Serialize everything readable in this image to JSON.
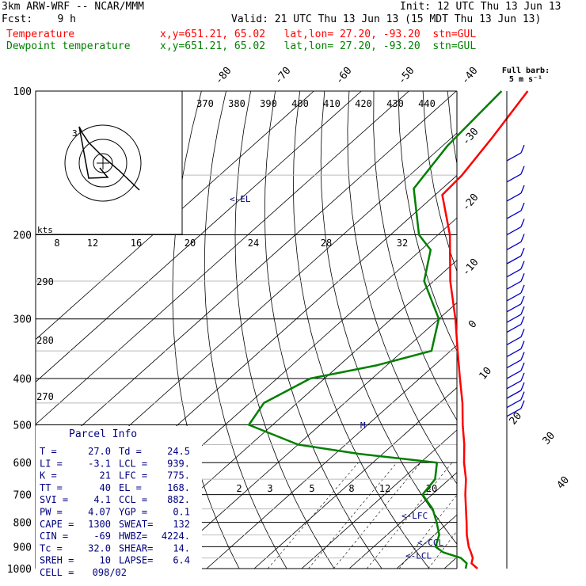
{
  "header": {
    "model": "3km ARW-WRF -- NCAR/MMM",
    "init": "Init: 12 UTC Thu 13 Jun 13",
    "fcst": "Fcst:    9 h",
    "valid": "Valid: 21 UTC Thu 13 Jun 13 (15 MDT Thu 13 Jun 13)",
    "temp_label": "Temperature",
    "dew_label": "Dewpoint temperature",
    "temp_loc": "x,y=651.21, 65.02   lat,lon= 27.20, -93.20  stn=GUL",
    "dew_loc": "x,y=651.21, 65.02   lat,lon= 27.20, -93.20  stn=GUL",
    "barb_key": "Full barb:",
    "barb_unit": "5 m s⁻¹"
  },
  "colors": {
    "temperature": "#ff0000",
    "dewpoint": "#008000",
    "text": "#000000",
    "annotation": "#000080",
    "barbs": "#0000cc"
  },
  "chart_data": {
    "type": "line",
    "kind": "skew-T log-P sounding",
    "y_axis": {
      "pressure_ticks": [
        100,
        200,
        300,
        400,
        500,
        600,
        700,
        800,
        900,
        1000
      ],
      "scale": "log",
      "ylim": [
        1000,
        100
      ]
    },
    "temperature_ticks": [
      "-80",
      "-70",
      "-60",
      "-50",
      "-40",
      "-30",
      "-20",
      "-10",
      "0",
      "10",
      "20",
      "30",
      "40"
    ],
    "theta_labels": [
      "370",
      "380",
      "390",
      "400",
      "410",
      "420",
      "430",
      "440"
    ],
    "theta_low_labels": [
      "290",
      "280",
      "270"
    ],
    "mixing_ratio_labels": [
      "2",
      "3",
      "5",
      "8",
      "12",
      "20"
    ],
    "hodograph": {
      "unit": "kts",
      "ring_labels": [
        "8",
        "12",
        "16",
        "20",
        "24",
        "28",
        "32"
      ],
      "end_label": "3"
    },
    "series": [
      {
        "name": "Temperature",
        "points": [
          [
            1000,
            27.0
          ],
          [
            975,
            24.5
          ],
          [
            950,
            23.5
          ],
          [
            925,
            21.8
          ],
          [
            900,
            20.0
          ],
          [
            850,
            16.8
          ],
          [
            800,
            13.8
          ],
          [
            750,
            10.5
          ],
          [
            700,
            7.0
          ],
          [
            650,
            3.5
          ],
          [
            600,
            -0.8
          ],
          [
            550,
            -5.0
          ],
          [
            500,
            -10.0
          ],
          [
            450,
            -15.2
          ],
          [
            400,
            -21.5
          ],
          [
            350,
            -28.5
          ],
          [
            300,
            -36.5
          ],
          [
            250,
            -46.5
          ],
          [
            200,
            -57.5
          ],
          [
            165,
            -68.5
          ],
          [
            150,
            -69.0
          ],
          [
            125,
            -71.5
          ],
          [
            100,
            -75.0
          ]
        ]
      },
      {
        "name": "Dewpoint temperature",
        "points": [
          [
            1000,
            24.5
          ],
          [
            975,
            23.5
          ],
          [
            950,
            21.0
          ],
          [
            925,
            16.0
          ],
          [
            900,
            13.0
          ],
          [
            850,
            11.0
          ],
          [
            800,
            7.5
          ],
          [
            750,
            3.5
          ],
          [
            700,
            -2.0
          ],
          [
            650,
            -3.0
          ],
          [
            600,
            -6.5
          ],
          [
            575,
            -25.0
          ],
          [
            550,
            -40.0
          ],
          [
            500,
            -55.0
          ],
          [
            450,
            -57.0
          ],
          [
            400,
            -53.0
          ],
          [
            375,
            -42.0
          ],
          [
            350,
            -34.0
          ],
          [
            300,
            -40.0
          ],
          [
            250,
            -52.0
          ],
          [
            215,
            -58.0
          ],
          [
            200,
            -64.0
          ],
          [
            160,
            -76.0
          ],
          [
            130,
            -79.0
          ],
          [
            100,
            -80.5
          ]
        ]
      }
    ],
    "levels": [
      {
        "label": "<-EL",
        "pressure": 168
      },
      {
        "label": "<-LFC",
        "pressure": 775
      },
      {
        "label": "<-CCL",
        "pressure": 882
      },
      {
        "label": "<-LCL",
        "pressure": 939
      }
    ],
    "parcel_marker": "M",
    "parcel_info_title": "Parcel Info",
    "parcel_info": [
      [
        "T  =",
        "27.0",
        "Td  =",
        "24.5"
      ],
      [
        "LI =",
        "-3.1",
        "LCL =",
        "939."
      ],
      [
        "K  =",
        "21",
        "LFC =",
        "775."
      ],
      [
        "TT =",
        "40",
        "EL  =",
        "168."
      ],
      [
        "SVI =",
        "4.1",
        "CCL =",
        "882."
      ],
      [
        "PW =",
        "4.07",
        "YGP =",
        "0.1"
      ],
      [
        "CAPE =",
        "1300",
        "SWEAT=",
        "132"
      ],
      [
        "CIN =",
        "-69",
        "HWBZ=",
        "4224."
      ],
      [
        "Tc =",
        "32.0",
        "SHEAR=",
        "14."
      ],
      [
        "SREH =",
        "10",
        "LAPSE=",
        "6.4"
      ],
      [
        "CELL =",
        "098/02",
        "",
        ""
      ]
    ]
  }
}
